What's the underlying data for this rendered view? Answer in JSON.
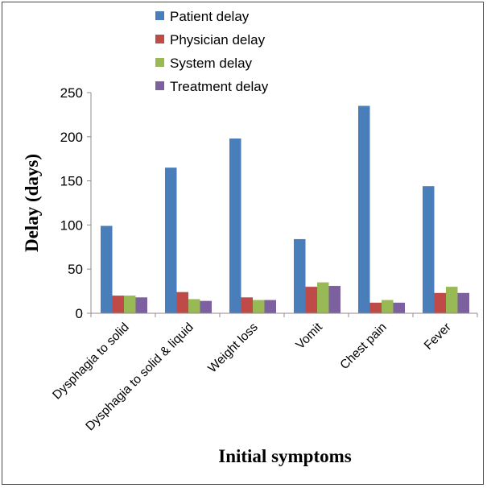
{
  "chart_data": {
    "type": "bar",
    "title": "",
    "xlabel": "Initial symptoms",
    "ylabel": "Delay (days)",
    "ylim": [
      0,
      250
    ],
    "yticks": [
      0,
      50,
      100,
      150,
      200,
      250
    ],
    "categories": [
      "Dysphagia to solid",
      "Dysphagia to solid & liquid",
      "Weight loss",
      "Vomit",
      "Chest pain",
      "Fever"
    ],
    "series": [
      {
        "name": "Patient delay",
        "color": "#4a7ebb",
        "values": [
          99,
          165,
          198,
          84,
          235,
          144
        ]
      },
      {
        "name": "Physician delay",
        "color": "#be4b48",
        "values": [
          20,
          24,
          18,
          30,
          12,
          23
        ]
      },
      {
        "name": "System delay",
        "color": "#98b954",
        "values": [
          20,
          16,
          15,
          35,
          15,
          30
        ]
      },
      {
        "name": "Treatment delay",
        "color": "#7d60a0",
        "values": [
          18,
          14,
          15,
          31,
          12,
          23
        ]
      }
    ],
    "legend_position": "top",
    "grid": false
  }
}
